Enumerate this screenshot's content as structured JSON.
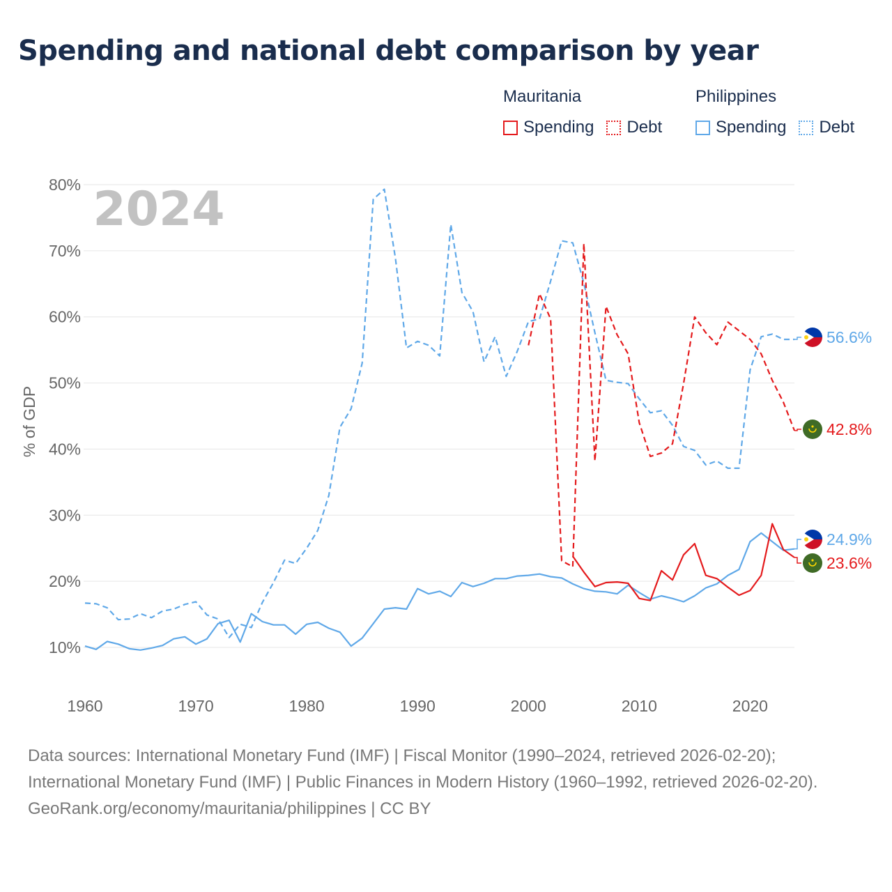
{
  "title": "Spending and national debt comparison by year",
  "legend": {
    "groups": [
      {
        "country": "Mauritania",
        "color": "#e41a1c",
        "items": [
          {
            "label": "Spending",
            "style": "solid"
          },
          {
            "label": "Debt",
            "style": "dotted"
          }
        ]
      },
      {
        "country": "Philippines",
        "color": "#5fa8e8",
        "items": [
          {
            "label": "Spending",
            "style": "solid"
          },
          {
            "label": "Debt",
            "style": "dotted"
          }
        ]
      }
    ]
  },
  "chart_data": {
    "type": "line",
    "ylabel": "% of GDP",
    "xlabel": "",
    "xlim": [
      1960,
      2024
    ],
    "ylim": [
      3,
      82
    ],
    "x_ticks": [
      1960,
      1970,
      1980,
      1990,
      2000,
      2010,
      2020
    ],
    "y_ticks": [
      10,
      20,
      30,
      40,
      50,
      60,
      70,
      80
    ],
    "y_tick_suffix": "%",
    "grid": true,
    "year_watermark": "2024",
    "series": [
      {
        "name": "Philippines Debt",
        "country": "Philippines",
        "metric": "Debt",
        "style": "dashed",
        "color": "#5fa8e8",
        "x": [
          1960,
          1961,
          1962,
          1963,
          1964,
          1965,
          1966,
          1967,
          1968,
          1969,
          1970,
          1971,
          1972,
          1973,
          1974,
          1975,
          1976,
          1977,
          1978,
          1979,
          1980,
          1981,
          1982,
          1983,
          1984,
          1985,
          1986,
          1987,
          1988,
          1989,
          1990,
          1991,
          1992,
          1993,
          1994,
          1995,
          1996,
          1997,
          1998,
          1999,
          2000,
          2001,
          2002,
          2003,
          2004,
          2005,
          2006,
          2007,
          2008,
          2009,
          2010,
          2011,
          2012,
          2013,
          2014,
          2015,
          2016,
          2017,
          2018,
          2019,
          2020,
          2021,
          2022,
          2023,
          2024
        ],
        "y": [
          16.7,
          16.6,
          16.0,
          14.2,
          14.3,
          15.1,
          14.5,
          15.5,
          15.8,
          16.5,
          16.9,
          14.9,
          14.3,
          11.5,
          13.5,
          13.0,
          16.8,
          19.8,
          23.2,
          22.7,
          25.0,
          27.7,
          33.0,
          43.3,
          46.1,
          53.0,
          77.8,
          79.3,
          68.9,
          55.3,
          56.3,
          55.7,
          54.1,
          74.0,
          63.7,
          60.8,
          53.2,
          57.0,
          51.0,
          54.8,
          59.3,
          59.7,
          65.4,
          71.5,
          71.2,
          65.1,
          57.6,
          50.4,
          50.1,
          49.9,
          47.6,
          45.5,
          45.8,
          43.6,
          40.4,
          39.8,
          37.6,
          38.2,
          37.1,
          37.1,
          52.0,
          57.0,
          57.4,
          56.6,
          56.6
        ],
        "end_label": "56.6%"
      },
      {
        "name": "Mauritania Debt",
        "country": "Mauritania",
        "metric": "Debt",
        "style": "dashed",
        "color": "#e41a1c",
        "x": [
          2000,
          2001,
          2002,
          2003,
          2004,
          2005,
          2006,
          2007,
          2008,
          2009,
          2010,
          2011,
          2012,
          2013,
          2014,
          2015,
          2016,
          2017,
          2018,
          2019,
          2020,
          2021,
          2022,
          2023,
          2024
        ],
        "y": [
          55.7,
          63.5,
          59.7,
          23.1,
          22.2,
          71.1,
          38.2,
          61.6,
          57.3,
          54.4,
          44.0,
          38.9,
          39.4,
          40.8,
          49.9,
          60.0,
          57.6,
          55.8,
          59.2,
          57.9,
          56.6,
          54.4,
          50.4,
          47.1,
          42.8
        ],
        "end_label": "42.8%"
      },
      {
        "name": "Philippines Spending",
        "country": "Philippines",
        "metric": "Spending",
        "style": "solid",
        "color": "#5fa8e8",
        "x": [
          1960,
          1961,
          1962,
          1963,
          1964,
          1965,
          1966,
          1967,
          1968,
          1969,
          1970,
          1971,
          1972,
          1973,
          1974,
          1975,
          1976,
          1977,
          1978,
          1979,
          1980,
          1981,
          1982,
          1983,
          1984,
          1985,
          1986,
          1987,
          1988,
          1989,
          1990,
          1991,
          1992,
          1993,
          1994,
          1995,
          1996,
          1997,
          1998,
          1999,
          2000,
          2001,
          2002,
          2003,
          2004,
          2005,
          2006,
          2007,
          2008,
          2009,
          2010,
          2011,
          2012,
          2013,
          2014,
          2015,
          2016,
          2017,
          2018,
          2019,
          2020,
          2021,
          2022,
          2023,
          2024
        ],
        "y": [
          10.2,
          9.7,
          10.9,
          10.5,
          9.8,
          9.6,
          9.9,
          10.3,
          11.3,
          11.6,
          10.5,
          11.3,
          13.6,
          14.1,
          10.8,
          15.1,
          13.9,
          13.4,
          13.4,
          12.0,
          13.5,
          13.8,
          12.9,
          12.3,
          10.2,
          11.4,
          13.6,
          15.8,
          16.0,
          15.8,
          18.9,
          18.1,
          18.5,
          17.7,
          19.8,
          19.2,
          19.7,
          20.4,
          20.4,
          20.8,
          20.9,
          21.1,
          20.7,
          20.5,
          19.6,
          18.9,
          18.5,
          18.4,
          18.1,
          19.4,
          18.3,
          17.3,
          17.8,
          17.4,
          16.9,
          17.8,
          19.0,
          19.6,
          20.9,
          21.8,
          26.0,
          27.3,
          26.0,
          24.7,
          24.9
        ],
        "end_label": "24.9%"
      },
      {
        "name": "Mauritania Spending",
        "country": "Mauritania",
        "metric": "Spending",
        "style": "solid",
        "color": "#e41a1c",
        "x": [
          2004,
          2005,
          2006,
          2007,
          2008,
          2009,
          2010,
          2011,
          2012,
          2013,
          2014,
          2015,
          2016,
          2017,
          2018,
          2019,
          2020,
          2021,
          2022,
          2023,
          2024
        ],
        "y": [
          23.8,
          21.4,
          19.2,
          19.8,
          19.9,
          19.7,
          17.4,
          17.1,
          21.6,
          20.2,
          24.0,
          25.7,
          20.9,
          20.4,
          19.1,
          17.9,
          18.6,
          20.9,
          28.7,
          24.8,
          23.6
        ],
        "end_label": "23.6%"
      }
    ]
  },
  "footer": {
    "sources": "Data sources: International Monetary Fund (IMF) | Fiscal Monitor (1990–2024, retrieved 2026-02-20); International Monetary Fund (IMF) | Public Finances in Modern History (1960–1992, retrieved 2026-02-20).",
    "credit": "GeoRank.org/economy/mauritania/philippines | CC BY"
  }
}
